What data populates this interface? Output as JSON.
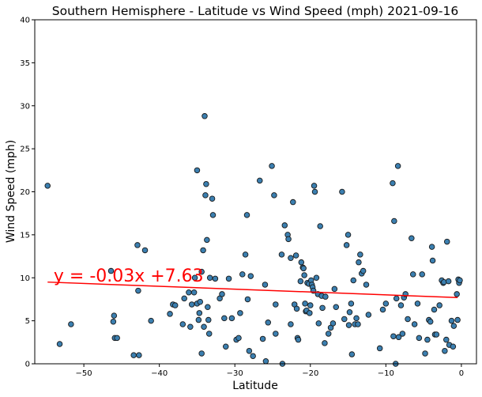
{
  "chart_data": {
    "type": "scatter",
    "title": "Southern Hemisphere - Latitude vs Wind Speed (mph) 2021-09-16",
    "xlabel": "Latitude",
    "ylabel": "Wind Speed (mph)",
    "xlim": [
      -56.5,
      2
    ],
    "ylim": [
      0,
      40
    ],
    "xticks": [
      -50,
      -40,
      -30,
      -20,
      -10,
      0
    ],
    "yticks": [
      0,
      5,
      10,
      15,
      20,
      25,
      30,
      35,
      40
    ],
    "grid": false,
    "point_color": "#3b7fb0",
    "point_edge_color": "#1a1a1a",
    "line_color": "#ff0000",
    "regression": {
      "slope": -0.03,
      "intercept": 7.63,
      "x_range": [
        -54.8,
        -0.5
      ],
      "y_start": 9.5,
      "y_end": 7.7
    },
    "annotation": {
      "text": "y = -0.03x +7.63",
      "x": -54,
      "y": 10.3,
      "color": "#ff0000"
    },
    "points": [
      [
        -54.8,
        20.7
      ],
      [
        -53.2,
        2.3
      ],
      [
        -51.7,
        4.6
      ],
      [
        -46.4,
        10.8
      ],
      [
        -46.1,
        4.9
      ],
      [
        -46.0,
        5.6
      ],
      [
        -45.9,
        3.0
      ],
      [
        -45.6,
        3.0
      ],
      [
        -43.4,
        1.0
      ],
      [
        -42.9,
        13.8
      ],
      [
        -42.8,
        8.5
      ],
      [
        -42.7,
        1.0
      ],
      [
        -41.9,
        13.2
      ],
      [
        -41.1,
        5.0
      ],
      [
        -38.6,
        5.8
      ],
      [
        -38.2,
        6.9
      ],
      [
        -37.9,
        6.8
      ],
      [
        -36.9,
        4.6
      ],
      [
        -36.7,
        7.6
      ],
      [
        -36.1,
        8.3
      ],
      [
        -35.9,
        4.3
      ],
      [
        -35.7,
        6.9
      ],
      [
        -35.4,
        8.3
      ],
      [
        -35.3,
        10.0
      ],
      [
        -35.0,
        22.5
      ],
      [
        -35.0,
        7.0
      ],
      [
        -34.8,
        5.1
      ],
      [
        -34.7,
        5.9
      ],
      [
        -34.6,
        7.2
      ],
      [
        -34.4,
        10.7
      ],
      [
        -34.4,
        1.2
      ],
      [
        -34.2,
        13.2
      ],
      [
        -34.1,
        4.3
      ],
      [
        -34.0,
        28.8
      ],
      [
        -33.9,
        19.6
      ],
      [
        -33.8,
        20.9
      ],
      [
        -33.7,
        14.4
      ],
      [
        -33.6,
        6.6
      ],
      [
        -33.5,
        5.1
      ],
      [
        -33.4,
        3.5
      ],
      [
        -33.3,
        10.0
      ],
      [
        -33.0,
        19.2
      ],
      [
        -32.9,
        17.3
      ],
      [
        -32.6,
        9.9
      ],
      [
        -32.0,
        7.6
      ],
      [
        -31.7,
        8.1
      ],
      [
        -31.4,
        5.3
      ],
      [
        -31.2,
        2.0
      ],
      [
        -30.8,
        9.9
      ],
      [
        -30.4,
        5.3
      ],
      [
        -29.8,
        2.8
      ],
      [
        -29.5,
        3.0
      ],
      [
        -29.3,
        5.9
      ],
      [
        -29.0,
        10.4
      ],
      [
        -28.6,
        12.7
      ],
      [
        -28.4,
        17.3
      ],
      [
        -28.3,
        7.5
      ],
      [
        -28.1,
        1.5
      ],
      [
        -27.9,
        10.2
      ],
      [
        -27.6,
        0.9
      ],
      [
        -26.7,
        21.3
      ],
      [
        -26.3,
        2.9
      ],
      [
        -26.0,
        9.2
      ],
      [
        -25.9,
        0.3
      ],
      [
        -25.6,
        4.8
      ],
      [
        -25.1,
        23.0
      ],
      [
        -24.8,
        19.6
      ],
      [
        -24.6,
        6.9
      ],
      [
        -24.6,
        3.5
      ],
      [
        -23.8,
        12.7
      ],
      [
        -23.7,
        0.0
      ],
      [
        -23.4,
        16.1
      ],
      [
        -23.0,
        15.0
      ],
      [
        -22.9,
        14.5
      ],
      [
        -22.6,
        12.3
      ],
      [
        -22.6,
        4.6
      ],
      [
        -22.3,
        18.8
      ],
      [
        -22.1,
        6.9
      ],
      [
        -21.9,
        12.6
      ],
      [
        -21.8,
        6.4
      ],
      [
        -21.7,
        3.0
      ],
      [
        -21.6,
        2.8
      ],
      [
        -21.3,
        9.6
      ],
      [
        -21.2,
        11.8
      ],
      [
        -21.0,
        11.2
      ],
      [
        -20.9,
        11.1
      ],
      [
        -20.8,
        10.3
      ],
      [
        -20.7,
        7.0
      ],
      [
        -20.6,
        6.1
      ],
      [
        -20.5,
        6.2
      ],
      [
        -20.4,
        9.4
      ],
      [
        -20.2,
        9.3
      ],
      [
        -20.1,
        5.9
      ],
      [
        -20.0,
        6.8
      ],
      [
        -19.9,
        9.7
      ],
      [
        -19.8,
        9.2
      ],
      [
        -19.7,
        8.9
      ],
      [
        -19.6,
        8.5
      ],
      [
        -19.5,
        20.7
      ],
      [
        -19.4,
        20.0
      ],
      [
        -19.2,
        10.0
      ],
      [
        -19.0,
        8.1
      ],
      [
        -18.9,
        4.7
      ],
      [
        -18.7,
        16.0
      ],
      [
        -18.5,
        7.9
      ],
      [
        -18.4,
        6.5
      ],
      [
        -18.1,
        2.4
      ],
      [
        -18.0,
        7.8
      ],
      [
        -17.6,
        3.5
      ],
      [
        -17.3,
        4.2
      ],
      [
        -17.0,
        4.7
      ],
      [
        -16.8,
        8.7
      ],
      [
        -16.6,
        6.6
      ],
      [
        -15.8,
        20.0
      ],
      [
        -15.5,
        5.2
      ],
      [
        -15.2,
        13.8
      ],
      [
        -15.0,
        15.0
      ],
      [
        -14.9,
        4.5
      ],
      [
        -14.8,
        6.0
      ],
      [
        -14.6,
        7.0
      ],
      [
        -14.5,
        1.1
      ],
      [
        -14.3,
        9.7
      ],
      [
        -14.1,
        4.6
      ],
      [
        -13.9,
        5.3
      ],
      [
        -13.7,
        4.6
      ],
      [
        -13.6,
        11.8
      ],
      [
        -13.4,
        12.7
      ],
      [
        -13.2,
        10.5
      ],
      [
        -13.0,
        10.8
      ],
      [
        -12.6,
        9.2
      ],
      [
        -12.3,
        5.7
      ],
      [
        -10.8,
        1.8
      ],
      [
        -10.4,
        6.3
      ],
      [
        -10.0,
        7.0
      ],
      [
        -9.1,
        21.0
      ],
      [
        -9.0,
        3.2
      ],
      [
        -8.9,
        16.6
      ],
      [
        -8.7,
        0.0
      ],
      [
        -8.6,
        7.6
      ],
      [
        -8.4,
        23.0
      ],
      [
        -8.3,
        3.1
      ],
      [
        -8.0,
        6.8
      ],
      [
        -7.8,
        3.5
      ],
      [
        -7.6,
        7.7
      ],
      [
        -7.4,
        8.1
      ],
      [
        -7.1,
        5.2
      ],
      [
        -6.6,
        14.6
      ],
      [
        -6.4,
        10.4
      ],
      [
        -6.2,
        4.6
      ],
      [
        -5.8,
        7.0
      ],
      [
        -5.6,
        3.0
      ],
      [
        -5.2,
        10.4
      ],
      [
        -4.8,
        1.2
      ],
      [
        -4.5,
        2.8
      ],
      [
        -4.3,
        5.1
      ],
      [
        -4.1,
        4.9
      ],
      [
        -3.9,
        13.6
      ],
      [
        -3.8,
        12.0
      ],
      [
        -3.6,
        6.3
      ],
      [
        -3.5,
        3.4
      ],
      [
        -3.3,
        3.4
      ],
      [
        -2.9,
        6.8
      ],
      [
        -2.6,
        9.7
      ],
      [
        -2.4,
        9.4
      ],
      [
        -2.3,
        9.5
      ],
      [
        -2.2,
        1.5
      ],
      [
        -2.0,
        2.8
      ],
      [
        -1.9,
        14.2
      ],
      [
        -1.7,
        9.6
      ],
      [
        -1.6,
        2.2
      ],
      [
        -1.3,
        5.0
      ],
      [
        -1.1,
        2.0
      ],
      [
        -1.0,
        4.4
      ],
      [
        -0.6,
        8.1
      ],
      [
        -0.5,
        5.1
      ],
      [
        -0.4,
        9.8
      ],
      [
        -0.3,
        9.4
      ],
      [
        -0.2,
        9.7
      ]
    ]
  }
}
